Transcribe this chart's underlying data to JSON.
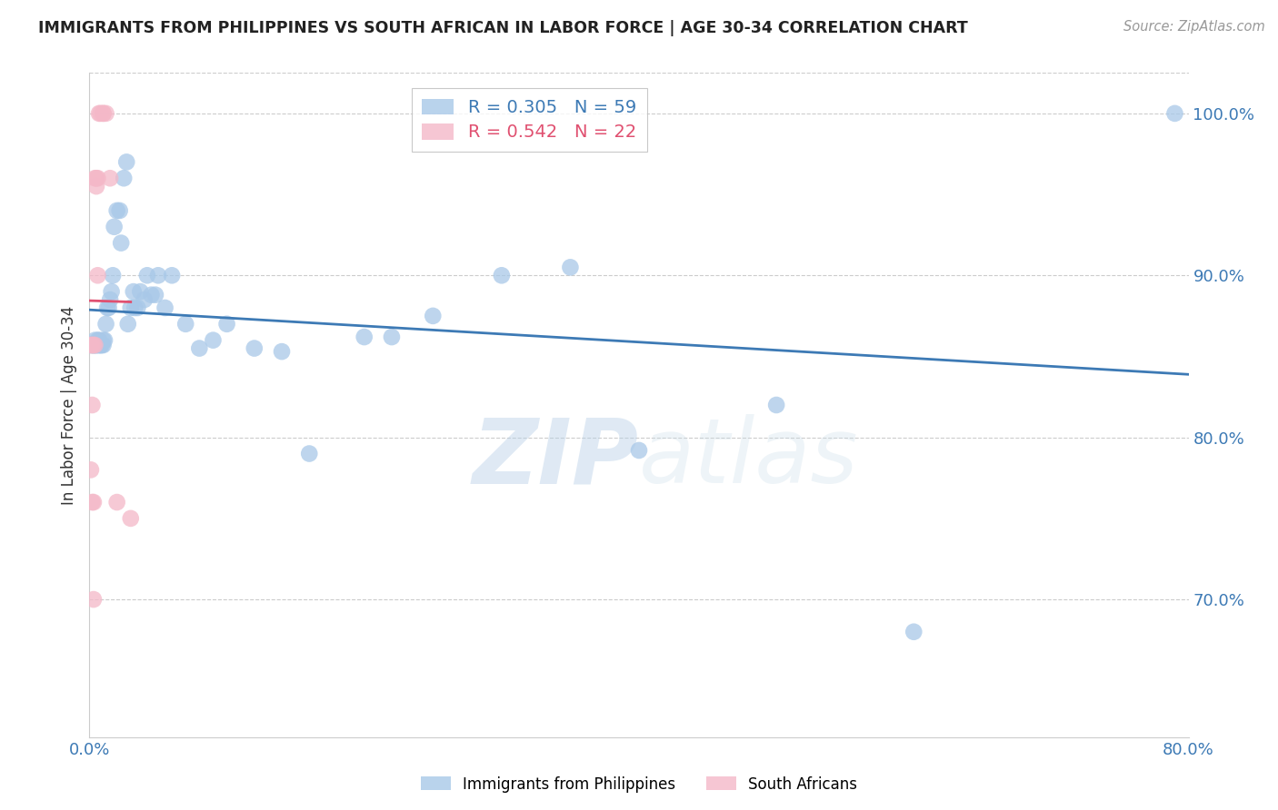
{
  "title": "IMMIGRANTS FROM PHILIPPINES VS SOUTH AFRICAN IN LABOR FORCE | AGE 30-34 CORRELATION CHART",
  "source": "Source: ZipAtlas.com",
  "ylabel": "In Labor Force | Age 30-34",
  "watermark_zip": "ZIP",
  "watermark_atlas": "atlas",
  "xlim": [
    0.0,
    0.8
  ],
  "ylim": [
    0.615,
    1.025
  ],
  "yticks": [
    0.7,
    0.8,
    0.9,
    1.0
  ],
  "ytick_labels": [
    "70.0%",
    "80.0%",
    "90.0%",
    "100.0%"
  ],
  "xtick_positions": [
    0.0,
    0.1,
    0.2,
    0.3,
    0.4,
    0.5,
    0.6,
    0.7,
    0.8
  ],
  "xtick_labels": [
    "0.0%",
    "",
    "",
    "",
    "",
    "",
    "",
    "",
    "80.0%"
  ],
  "blue_color": "#a8c8e8",
  "pink_color": "#f4b8c8",
  "line_blue": "#3d7ab5",
  "line_pink": "#e05070",
  "blue_R": 0.305,
  "blue_N": 59,
  "pink_R": 0.542,
  "pink_N": 22,
  "blue_x": [
    0.001,
    0.002,
    0.003,
    0.003,
    0.004,
    0.004,
    0.005,
    0.005,
    0.006,
    0.006,
    0.007,
    0.007,
    0.008,
    0.008,
    0.009,
    0.01,
    0.01,
    0.011,
    0.012,
    0.013,
    0.014,
    0.015,
    0.016,
    0.017,
    0.018,
    0.02,
    0.022,
    0.023,
    0.025,
    0.027,
    0.028,
    0.03,
    0.032,
    0.033,
    0.035,
    0.037,
    0.04,
    0.042,
    0.045,
    0.048,
    0.05,
    0.055,
    0.06,
    0.07,
    0.08,
    0.09,
    0.1,
    0.12,
    0.14,
    0.16,
    0.2,
    0.22,
    0.25,
    0.3,
    0.35,
    0.4,
    0.5,
    0.6,
    0.79
  ],
  "blue_y": [
    0.857,
    0.857,
    0.857,
    0.857,
    0.857,
    0.86,
    0.857,
    0.857,
    0.857,
    0.86,
    0.86,
    0.857,
    0.857,
    0.857,
    0.857,
    0.857,
    0.86,
    0.86,
    0.87,
    0.88,
    0.88,
    0.885,
    0.89,
    0.9,
    0.93,
    0.94,
    0.94,
    0.92,
    0.96,
    0.97,
    0.87,
    0.88,
    0.89,
    0.88,
    0.88,
    0.89,
    0.885,
    0.9,
    0.888,
    0.888,
    0.9,
    0.88,
    0.9,
    0.87,
    0.855,
    0.86,
    0.87,
    0.855,
    0.853,
    0.79,
    0.862,
    0.862,
    0.875,
    0.9,
    0.905,
    0.792,
    0.82,
    0.68,
    1.0
  ],
  "pink_x": [
    0.001,
    0.001,
    0.002,
    0.002,
    0.002,
    0.003,
    0.003,
    0.003,
    0.004,
    0.004,
    0.005,
    0.005,
    0.006,
    0.006,
    0.007,
    0.008,
    0.01,
    0.01,
    0.012,
    0.015,
    0.02,
    0.03
  ],
  "pink_y": [
    0.857,
    0.78,
    0.857,
    0.82,
    0.76,
    0.857,
    0.76,
    0.7,
    0.857,
    0.96,
    0.955,
    0.96,
    0.96,
    0.9,
    1.0,
    1.0,
    1.0,
    1.0,
    1.0,
    0.96,
    0.76,
    0.75
  ]
}
